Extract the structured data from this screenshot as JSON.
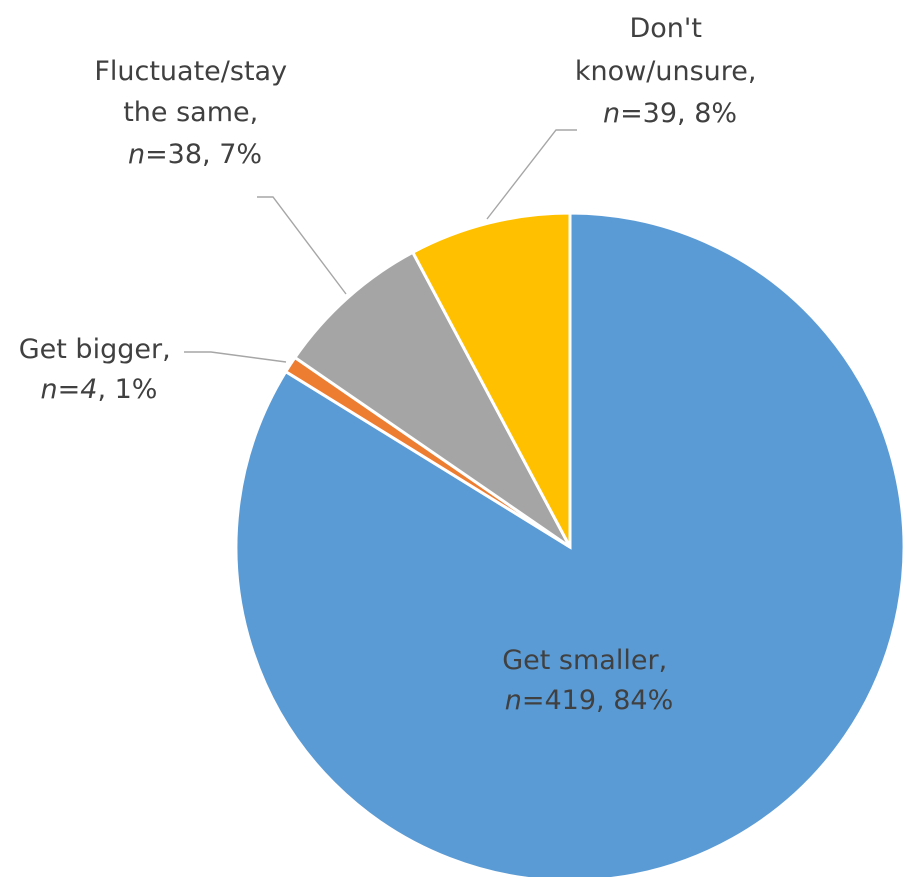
{
  "chart_data": {
    "type": "pie",
    "start_angle_deg": 90,
    "direction": "clockwise",
    "legend": "none",
    "slices": [
      {
        "key": "smaller",
        "label": "Get smaller,",
        "n_prefix": "n",
        "n_text": "=419",
        "pct_text": ", 84%",
        "value": 419,
        "percent": 84,
        "color": "#5b9bd5"
      },
      {
        "key": "bigger",
        "label": "Get bigger,",
        "n_prefix": "n",
        "n_text": "=4",
        "pct_text": ", 1%",
        "value": 4,
        "percent": 1,
        "color": "#ed7d31"
      },
      {
        "key": "fluctuate",
        "label_lines": [
          "Fluctuate/stay",
          "the same,"
        ],
        "n_prefix": "n",
        "n_text": "=38",
        "pct_text": ", 7%",
        "value": 38,
        "percent": 7,
        "color": "#a5a5a5"
      },
      {
        "key": "dontknow",
        "label_lines": [
          "Don't",
          "know/unsure,"
        ],
        "n_prefix": "n",
        "n_text": "=39",
        "pct_text": ", 8%",
        "value": 39,
        "percent": 8,
        "color": "#ffc000"
      }
    ]
  }
}
